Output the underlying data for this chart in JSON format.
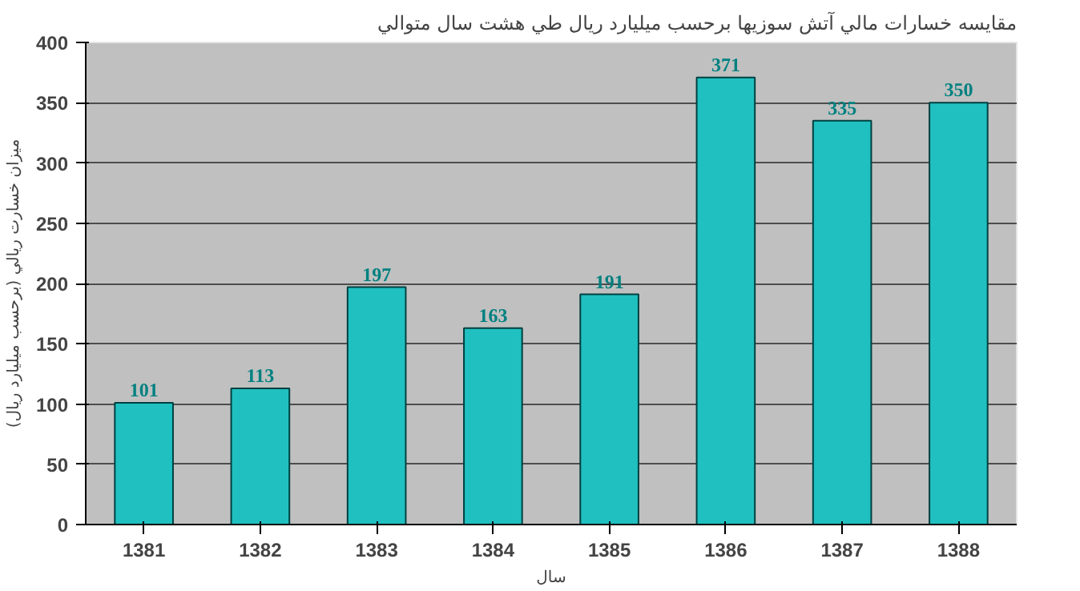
{
  "chart_data": {
    "type": "bar",
    "title": "مقايسه خسارات مالي آتش سوزيها برحسب ميليارد ريال طي هشت سال متوالي",
    "xlabel": "سال",
    "ylabel": "ميزان خسارت ريالي (برحسب ميليارد ريال)",
    "categories": [
      "1381",
      "1382",
      "1383",
      "1384",
      "1385",
      "1386",
      "1387",
      "1388"
    ],
    "values": [
      101,
      113,
      197,
      163,
      191,
      371,
      335,
      350
    ],
    "color": "#20c0c0",
    "ylim": [
      0,
      400
    ],
    "yticks": [
      0,
      50,
      100,
      150,
      200,
      250,
      300,
      350,
      400
    ],
    "grid": "y",
    "data_labels": true
  }
}
